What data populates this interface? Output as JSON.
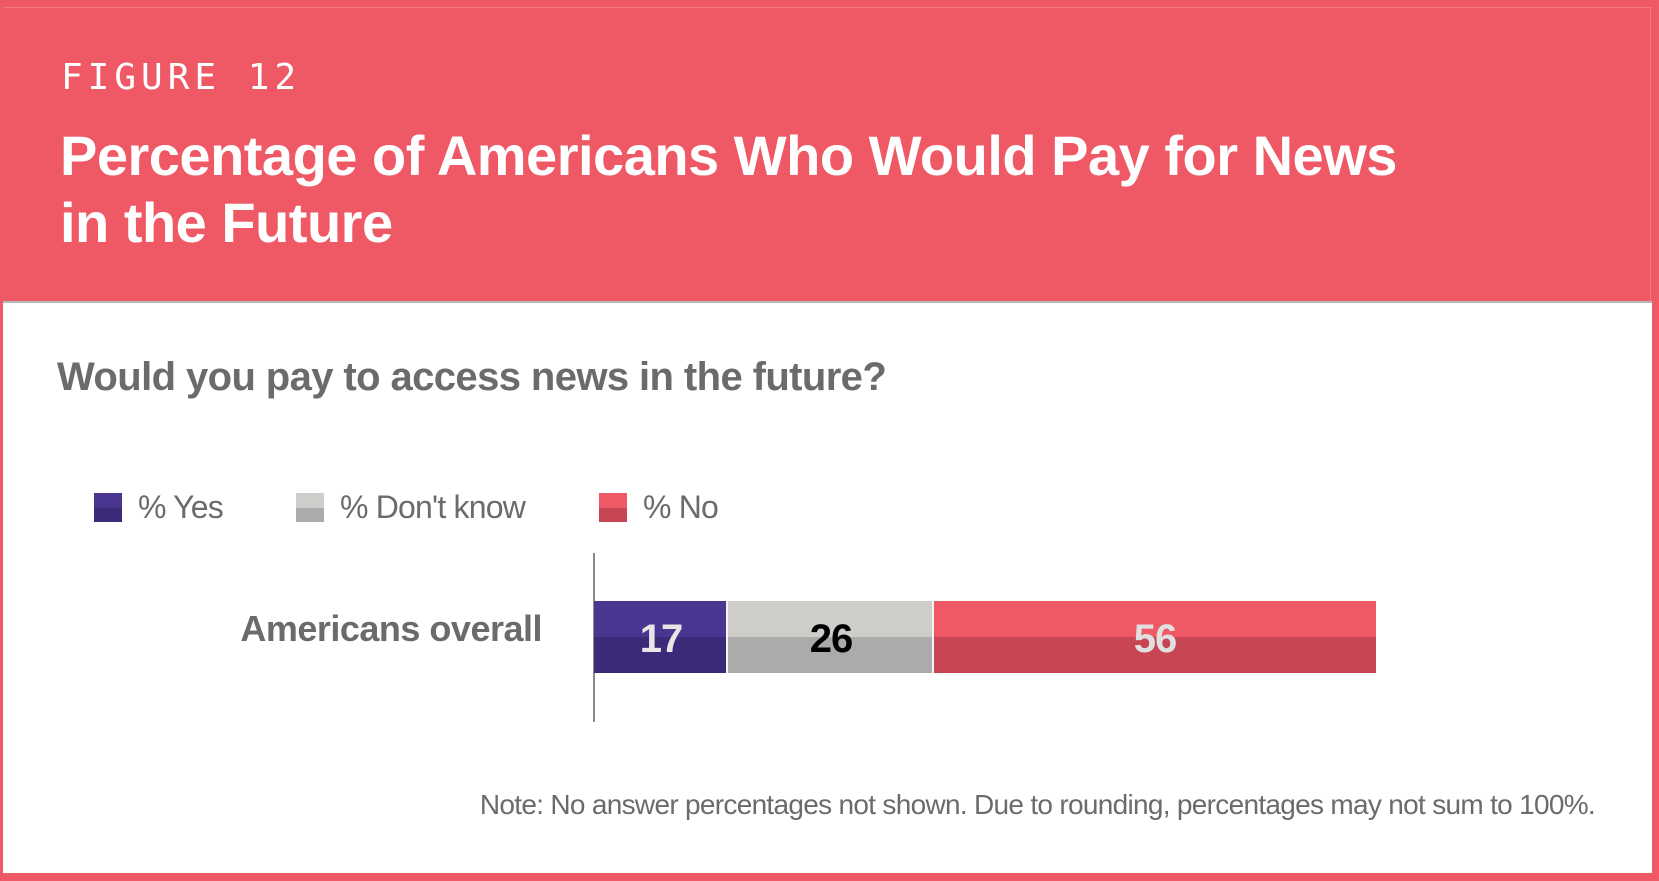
{
  "header": {
    "figure_label": "FIGURE 12",
    "title": "Percentage of Americans Who Would Pay for News in the Future",
    "background_color": "#ef5966"
  },
  "question": "Would you pay to access news in the future?",
  "note": "Note: No answer percentages not shown. Due to rounding, percentages may not sum to 100%.",
  "chart_data": {
    "type": "bar",
    "orientation": "horizontal",
    "stacked": true,
    "title": "Would you pay to access news in the future?",
    "categories": [
      "Americans overall"
    ],
    "series": [
      {
        "name": "% Yes",
        "values": [
          17
        ],
        "color": "#4a3590",
        "shade": "#3b2a78",
        "label_color": "#e6e6e6"
      },
      {
        "name": "% Don't know",
        "values": [
          26
        ],
        "color": "#cfcdca",
        "shade": "#aaabaa",
        "label_color": "#000000"
      },
      {
        "name": "% No",
        "values": [
          56
        ],
        "color": "#ef5966",
        "shade": "#c84654",
        "label_color": "#e0e0e0"
      }
    ],
    "xlim": [
      0,
      100
    ],
    "xlabel": "",
    "ylabel": "",
    "grid": false,
    "legend_position": "top-left"
  }
}
